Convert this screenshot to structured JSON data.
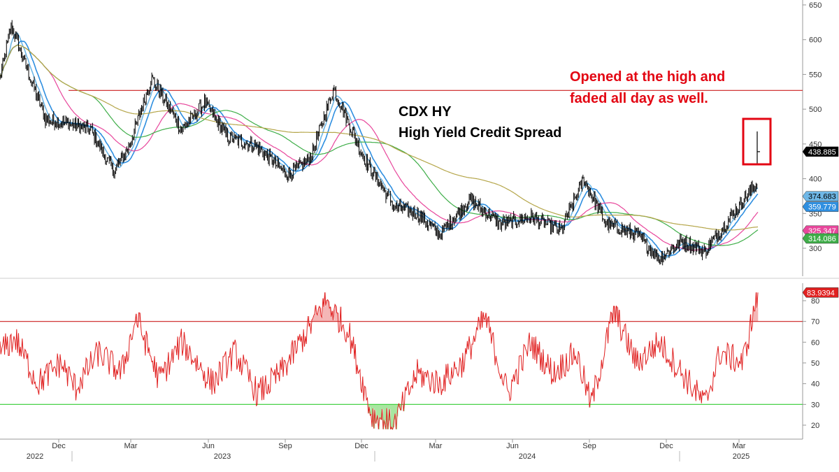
{
  "chart_data": [
    {
      "type": "line",
      "panel": "price",
      "title": "CDX HY",
      "subtitle": "High Yield Credit Spread",
      "annotation": "Opened at the high and faded all day as well.",
      "annotation_lines": [
        "Opened at the high and",
        "faded all day as well."
      ],
      "ylim": [
        280,
        650
      ],
      "yticks": [
        300,
        350,
        400,
        450,
        500,
        550,
        600,
        650
      ],
      "resistance_level": 527,
      "x_months": [
        "Dec",
        "Mar",
        "Jun",
        "Sep",
        "Dec",
        "Mar",
        "Jun",
        "Sep",
        "Dec",
        "Mar"
      ],
      "x_years": [
        "2022",
        "2023",
        "2024",
        "2025"
      ],
      "anchors_t": [
        0,
        0.015,
        0.03,
        0.06,
        0.09,
        0.12,
        0.15,
        0.17,
        0.2,
        0.24,
        0.27,
        0.3,
        0.34,
        0.38,
        0.41,
        0.44,
        0.48,
        0.52,
        0.55,
        0.58,
        0.62,
        0.66,
        0.7,
        0.74,
        0.77,
        0.8,
        0.84,
        0.87,
        0.9,
        0.93,
        0.96,
        1.0
      ],
      "anchors_price": [
        545,
        620,
        575,
        485,
        480,
        470,
        410,
        445,
        545,
        470,
        510,
        460,
        445,
        405,
        430,
        530,
        430,
        360,
        350,
        320,
        370,
        335,
        345,
        325,
        400,
        335,
        320,
        285,
        310,
        295,
        340,
        395
      ],
      "last_candle": {
        "open": 468,
        "high": 468,
        "low": 420,
        "close": 438.885
      },
      "series": [
        {
          "name": "",
          "color": "#6fb7e6",
          "values": [
            374.683
          ]
        },
        {
          "name": "",
          "color": "#2f8fe0",
          "values": [
            359.779
          ]
        },
        {
          "name": "",
          "color": "#e8479c",
          "values": [
            325.347
          ]
        },
        {
          "name": "",
          "color": "#3fae49",
          "values": [
            314.086
          ]
        },
        {
          "name": "",
          "color": "#b5a64a",
          "values": []
        }
      ],
      "last_value_labels": [
        {
          "value": "438.885",
          "price": 438.885,
          "bg": "#000000",
          "fg": "#ffffff"
        },
        {
          "value": "374.683",
          "price": 374.683,
          "bg": "#6fb7e6",
          "fg": "#000000"
        },
        {
          "value": "359.779",
          "price": 359.779,
          "bg": "#2f8fe0",
          "fg": "#ffffff"
        },
        {
          "value": "325.347",
          "price": 325.347,
          "bg": "#e8479c",
          "fg": "#ffffff"
        },
        {
          "value": "314.086",
          "price": 314.086,
          "bg": "#3fae49",
          "fg": "#ffffff"
        }
      ],
      "colors": {
        "candles": "#000000",
        "resistance": "#cc1f1f",
        "highlight_box": "#e30613"
      }
    },
    {
      "type": "line",
      "panel": "rsi",
      "ylim": [
        15,
        88
      ],
      "yticks": [
        20,
        30,
        40,
        50,
        60,
        70,
        80
      ],
      "upper_level": 70,
      "lower_level": 30,
      "last_value": "83.9394",
      "last_value_num": 83.9394,
      "anchors_t": [
        0,
        0.02,
        0.05,
        0.08,
        0.1,
        0.13,
        0.16,
        0.18,
        0.21,
        0.24,
        0.28,
        0.31,
        0.34,
        0.37,
        0.4,
        0.43,
        0.46,
        0.49,
        0.52,
        0.55,
        0.58,
        0.61,
        0.64,
        0.67,
        0.7,
        0.73,
        0.76,
        0.78,
        0.81,
        0.84,
        0.87,
        0.9,
        0.93,
        0.95,
        0.98,
        1.0
      ],
      "anchors_rsi": [
        55,
        62,
        40,
        50,
        38,
        55,
        45,
        72,
        42,
        60,
        40,
        55,
        35,
        45,
        62,
        80,
        65,
        25,
        20,
        45,
        40,
        50,
        72,
        35,
        60,
        45,
        55,
        30,
        75,
        50,
        60,
        45,
        30,
        55,
        50,
        83.94
      ],
      "colors": {
        "line": "#e02020",
        "upper": "#cc1f1f",
        "lower": "#33cc33",
        "fill_over": "#f4b6b6",
        "fill_under": "#a8e6a0"
      }
    }
  ]
}
